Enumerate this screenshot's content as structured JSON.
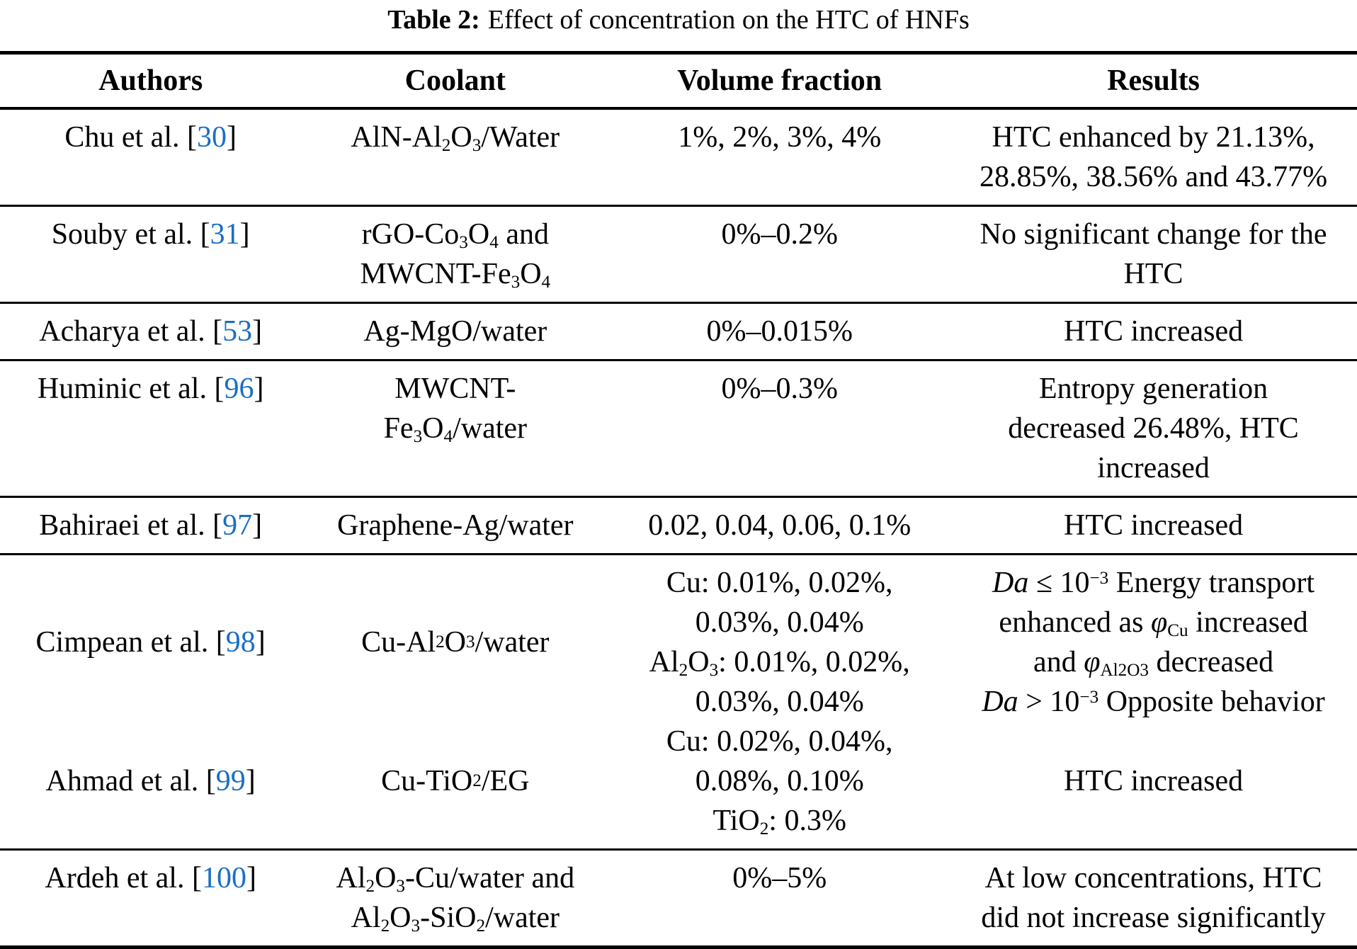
{
  "caption": {
    "label": "Table 2:",
    "text": "Effect of concentration on the HTC of HNFs"
  },
  "colors": {
    "citation_blue": "#1a6fc4",
    "text": "#000000",
    "rule": "#000000",
    "background": "#ffffff"
  },
  "columns": [
    "Authors",
    "Coolant",
    "Volume fraction",
    "Results"
  ],
  "rows": [
    {
      "author": "Chu et al. [<span class='ref'>30</span>]",
      "coolant": [
        "AlN-Al<sub>2</sub>O<sub>3</sub>/Water"
      ],
      "volume": [
        "1%, 2%, 3%, 4%"
      ],
      "results": [
        "HTC enhanced by 21.13%,",
        "28.85%, 38.56% and 43.77%"
      ]
    },
    {
      "author": "Souby et al. [<span class='ref'>31</span>]",
      "coolant": [
        "rGO-Co<sub>3</sub>O<sub>4</sub> and",
        "MWCNT-Fe<sub>3</sub>O<sub>4</sub>"
      ],
      "volume": [
        "0%–0.2%"
      ],
      "results": [
        "No significant change for the",
        "HTC"
      ]
    },
    {
      "author": "Acharya et al. [<span class='ref'>53</span>]",
      "coolant": [
        "Ag-MgO/water"
      ],
      "volume": [
        "0%–0.015%"
      ],
      "results": [
        "HTC increased"
      ]
    },
    {
      "author": "Huminic et al. [<span class='ref'>96</span>]",
      "coolant": [
        "MWCNT-",
        "Fe<sub>3</sub>O<sub>4</sub>/water"
      ],
      "volume": [
        "0%–0.3%"
      ],
      "results": [
        "Entropy generation",
        "decreased 26.48%, HTC",
        "increased"
      ]
    },
    {
      "author": "Bahiraei et al. [<span class='ref'>97</span>]",
      "coolant": [
        "Graphene-Ag/water"
      ],
      "volume": [
        "0.02, 0.04, 0.06, 0.1%"
      ],
      "results": [
        "HTC increased"
      ]
    },
    {
      "author": "Cimpean et al. [<span class='ref'>98</span>]",
      "coolant": [
        "Cu-Al<sub>2</sub>O<sub>3</sub>/water"
      ],
      "volume": [
        "Cu: 0.01%, 0.02%,",
        "0.03%, 0.04%",
        "Al<sub>2</sub>O<sub>3</sub>: 0.01%, 0.02%,",
        "0.03%, 0.04%"
      ],
      "results": [
        "<i>Da</i> ≤ 10<sup>−3</sup> Energy transport",
        "enhanced as <i>φ</i><sub>Cu</sub> increased",
        "and <i>φ</i><sub>Al2O3</sub> decreased",
        "<i>Da</i> > 10<sup>−3</sup> Opposite behavior"
      ]
    },
    {
      "author": "Ahmad et al. [<span class='ref'>99</span>]",
      "coolant": [
        "Cu-TiO<sub>2</sub>/EG"
      ],
      "volume": [
        "Cu: 0.02%, 0.04%,",
        "0.08%, 0.10%",
        "TiO<sub>2</sub>: 0.3%"
      ],
      "results": [
        "HTC increased"
      ]
    },
    {
      "author": "Ardeh et al. [<span class='ref'>100</span>]",
      "coolant": [
        "Al<sub>2</sub>O<sub>3</sub>-Cu/water and",
        "Al<sub>2</sub>O<sub>3</sub>-SiO<sub>2</sub>/water"
      ],
      "volume": [
        "0%–5%"
      ],
      "results": [
        "At low concentrations, HTC",
        "did not increase significantly"
      ]
    }
  ]
}
